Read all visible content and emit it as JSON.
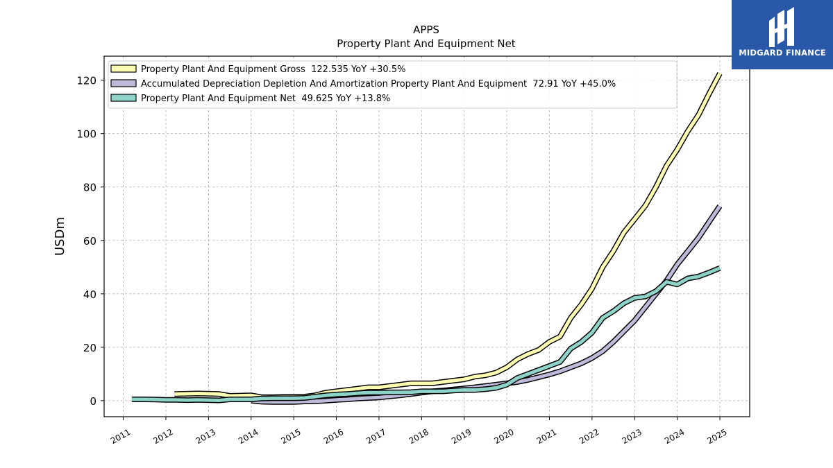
{
  "brand": {
    "name": "MIDGARD FINANCE",
    "bg_color": "#2a58a8"
  },
  "chart_data": {
    "type": "line",
    "title": "APPS",
    "subtitle": "Property Plant And Equipment Net",
    "ylabel": "USDm",
    "xlabel": "",
    "xlim": [
      2010.55,
      2025.7
    ],
    "ylim": [
      -6,
      129
    ],
    "yticks": [
      0,
      20,
      40,
      60,
      80,
      100,
      120
    ],
    "xticks": [
      2011,
      2012,
      2013,
      2014,
      2015,
      2016,
      2017,
      2018,
      2019,
      2020,
      2021,
      2022,
      2023,
      2024,
      2025
    ],
    "grid": true,
    "legend_position": "top-left",
    "series": [
      {
        "name": "Property Plant And Equipment Gross  122.535 YoY +30.5%",
        "color": "#ffffb3",
        "x": [
          2012.2,
          2012.5,
          2012.75,
          2013.0,
          2013.25,
          2013.5,
          2013.75,
          2014.0,
          2014.25,
          2014.5,
          2014.75,
          2015.0,
          2015.25,
          2015.5,
          2015.75,
          2016.0,
          2016.25,
          2016.5,
          2016.75,
          2017.0,
          2017.25,
          2017.5,
          2017.75,
          2018.0,
          2018.25,
          2018.5,
          2018.75,
          2019.0,
          2019.25,
          2019.5,
          2019.75,
          2020.0,
          2020.25,
          2020.5,
          2020.75,
          2021.0,
          2021.25,
          2021.5,
          2021.75,
          2022.0,
          2022.25,
          2022.5,
          2022.75,
          2023.0,
          2023.25,
          2023.5,
          2023.75,
          2024.0,
          2024.25,
          2024.5,
          2024.75,
          2025.0
        ],
        "values": [
          2.5,
          2.6,
          2.7,
          2.6,
          2.5,
          1.8,
          1.9,
          2.0,
          1.3,
          1.3,
          1.4,
          1.4,
          1.5,
          2.0,
          3.0,
          3.5,
          4.0,
          4.5,
          5.0,
          5.0,
          5.5,
          6.0,
          6.5,
          6.5,
          6.5,
          7.0,
          7.5,
          8.0,
          9.0,
          9.5,
          10.5,
          12.5,
          15.5,
          17.5,
          19.0,
          22.0,
          24.0,
          31.0,
          36.0,
          42.0,
          50.0,
          56.0,
          63.0,
          68.0,
          73.0,
          80.0,
          88.0,
          94.0,
          101.0,
          107.0,
          115.0,
          122.535
        ]
      },
      {
        "name": "Accumulated Depreciation Depletion And Amortization Property Plant And Equipment  72.91 YoY +45.0%",
        "color": "#bebada",
        "x": [
          2014.0,
          2014.25,
          2014.5,
          2014.75,
          2015.0,
          2015.25,
          2015.5,
          2015.75,
          2016.0,
          2016.25,
          2016.5,
          2016.75,
          2017.0,
          2017.25,
          2017.5,
          2017.75,
          2018.0,
          2018.25,
          2018.5,
          2018.75,
          2019.0,
          2019.25,
          2019.5,
          2019.75,
          2020.0,
          2020.25,
          2020.5,
          2020.75,
          2021.0,
          2021.25,
          2021.5,
          2021.75,
          2022.0,
          2022.25,
          2022.5,
          2022.75,
          2023.0,
          2023.25,
          2023.5,
          2023.75,
          2024.0,
          2024.25,
          2024.5,
          2024.75,
          2025.0
        ],
        "values": [
          0.0,
          -0.4,
          -0.5,
          -0.5,
          -0.5,
          -0.3,
          -0.2,
          0.0,
          0.3,
          0.5,
          0.8,
          1.0,
          1.2,
          1.6,
          2.0,
          2.5,
          3.0,
          3.5,
          3.8,
          4.2,
          4.6,
          5.0,
          5.5,
          6.0,
          6.5,
          7.0,
          7.8,
          8.8,
          9.8,
          11.0,
          12.5,
          14.0,
          16.0,
          18.5,
          22.0,
          26.0,
          30.0,
          35.0,
          40.0,
          45.0,
          51.0,
          56.0,
          61.0,
          67.0,
          72.91
        ]
      },
      {
        "name": "Property Plant And Equipment Net  49.625 YoY +13.8%",
        "color": "#8dd3c7",
        "x": [
          2011.2,
          2011.5,
          2011.75,
          2012.0,
          2012.25,
          2012.5,
          2012.75,
          2013.0,
          2013.25,
          2013.5,
          2013.75,
          2014.0,
          2014.25,
          2014.5,
          2014.75,
          2015.0,
          2015.25,
          2015.5,
          2015.75,
          2016.0,
          2016.25,
          2016.5,
          2016.75,
          2017.0,
          2017.25,
          2017.5,
          2017.75,
          2018.0,
          2018.25,
          2018.5,
          2018.75,
          2019.0,
          2019.25,
          2019.5,
          2019.75,
          2020.0,
          2020.25,
          2020.5,
          2020.75,
          2021.0,
          2021.25,
          2021.5,
          2021.75,
          2022.0,
          2022.25,
          2022.5,
          2022.75,
          2023.0,
          2023.25,
          2023.5,
          2023.75,
          2024.0,
          2024.25,
          2024.5,
          2024.75,
          2025.0
        ],
        "values": [
          0.5,
          0.5,
          0.4,
          0.3,
          0.3,
          0.2,
          0.3,
          0.2,
          0.1,
          0.5,
          0.5,
          0.5,
          0.8,
          0.9,
          0.9,
          0.9,
          1.0,
          1.5,
          2.0,
          2.3,
          2.5,
          2.8,
          3.0,
          3.0,
          3.1,
          3.1,
          3.2,
          3.5,
          3.5,
          3.5,
          3.8,
          4.0,
          4.0,
          4.3,
          4.8,
          6.0,
          8.5,
          10.0,
          11.5,
          13.0,
          14.5,
          19.5,
          22.0,
          25.5,
          31.0,
          33.5,
          36.5,
          38.5,
          39.0,
          41.0,
          44.5,
          43.5,
          45.8,
          46.5,
          48.0,
          49.625
        ]
      }
    ]
  }
}
